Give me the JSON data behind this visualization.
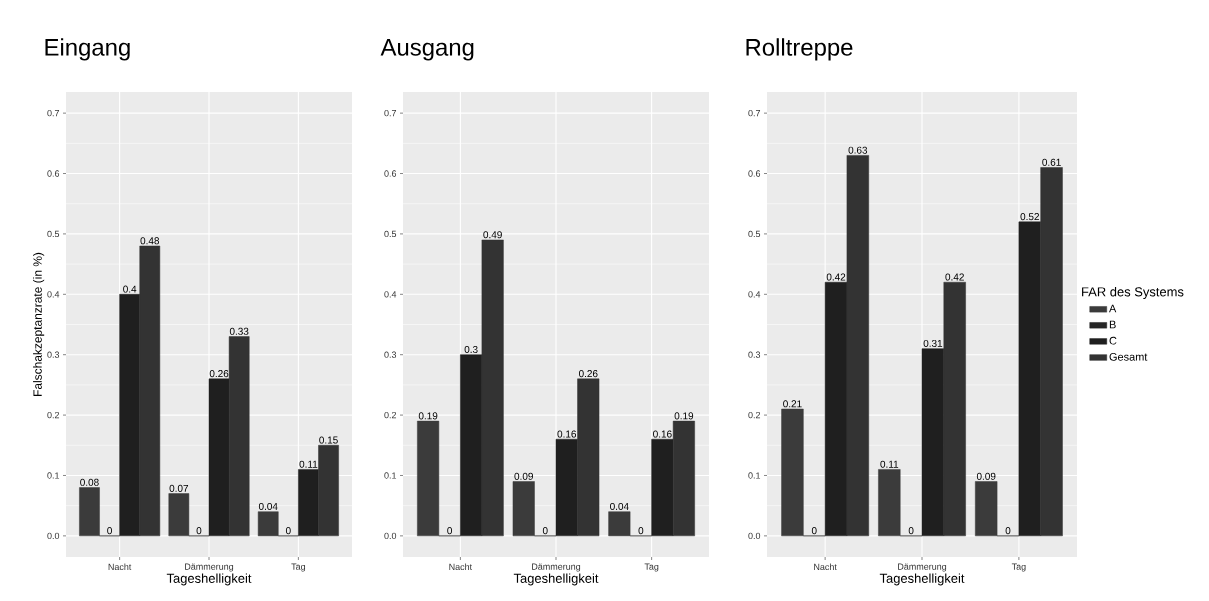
{
  "chart_data": [
    {
      "type": "bar",
      "title": "Eingang",
      "xlabel": "Tageshelligkeit",
      "ylabel": "Falschakzeptanzrate (in %)",
      "categories": [
        "Nacht",
        "Dämmerung",
        "Tag"
      ],
      "series": [
        {
          "color": "#3b3b3b",
          "values": [
            0.08,
            0.07,
            0.04
          ]
        },
        {
          "color": "#262626",
          "values": [
            0,
            0,
            0
          ]
        },
        {
          "color": "#1f1f1f",
          "values": [
            0.4,
            0.26,
            0.11
          ]
        },
        {
          "color": "#333333",
          "values": [
            0.48,
            0.33,
            0.15
          ]
        }
      ],
      "ylim": [
        -0.035,
        0.735
      ],
      "yticks": [
        {
          "value": 0,
          "label": "0.0"
        },
        {
          "value": 0.1,
          "label": "0.1"
        },
        {
          "value": 0.2,
          "label": "0.2"
        },
        {
          "value": 0.3,
          "label": "0.3"
        },
        {
          "value": 0.4,
          "label": "0.4"
        },
        {
          "value": 0.5,
          "label": "0.5"
        },
        {
          "value": 0.6,
          "label": "0.6"
        },
        {
          "value": 0.7,
          "label": "0.7"
        }
      ],
      "grid": true,
      "data_labels": true
    },
    {
      "type": "bar",
      "title": "Ausgang",
      "xlabel": "Tageshelligkeit",
      "categories": [
        "Nacht",
        "Dämmerung",
        "Tag"
      ],
      "series": [
        {
          "color": "#3b3b3b",
          "values": [
            0.19,
            0.09,
            0.04
          ]
        },
        {
          "color": "#262626",
          "values": [
            0,
            0,
            0
          ]
        },
        {
          "color": "#1f1f1f",
          "values": [
            0.3,
            0.16,
            0.16
          ]
        },
        {
          "color": "#333333",
          "values": [
            0.49,
            0.26,
            0.19
          ]
        }
      ],
      "ylim": [
        -0.035,
        0.735
      ],
      "yticks": [
        {
          "value": 0,
          "label": "0.0"
        },
        {
          "value": 0.1,
          "label": "0.1"
        },
        {
          "value": 0.2,
          "label": "0.2"
        },
        {
          "value": 0.3,
          "label": "0.3"
        },
        {
          "value": 0.4,
          "label": "0.4"
        },
        {
          "value": 0.5,
          "label": "0.5"
        },
        {
          "value": 0.6,
          "label": "0.6"
        },
        {
          "value": 0.7,
          "label": "0.7"
        }
      ],
      "grid": true,
      "data_labels": true
    },
    {
      "type": "bar",
      "title": "Rolltreppe",
      "xlabel": "Tageshelligkeit",
      "categories": [
        "Nacht",
        "Dämmerung",
        "Tag"
      ],
      "series": [
        {
          "name": "A",
          "color": "#3b3b3b",
          "values": [
            0.21,
            0.11,
            0.09
          ]
        },
        {
          "name": "B",
          "color": "#262626",
          "values": [
            0,
            0,
            0
          ]
        },
        {
          "name": "C",
          "color": "#1f1f1f",
          "values": [
            0.42,
            0.31,
            0.52
          ]
        },
        {
          "name": "Gesamt",
          "color": "#333333",
          "values": [
            0.63,
            0.42,
            0.61
          ]
        }
      ],
      "ylim": [
        -0.035,
        0.735
      ],
      "yticks": [
        {
          "value": 0,
          "label": "0.0"
        },
        {
          "value": 0.1,
          "label": "0.1"
        },
        {
          "value": 0.2,
          "label": "0.2"
        },
        {
          "value": 0.3,
          "label": "0.3"
        },
        {
          "value": 0.4,
          "label": "0.4"
        },
        {
          "value": 0.5,
          "label": "0.5"
        },
        {
          "value": 0.6,
          "label": "0.6"
        },
        {
          "value": 0.7,
          "label": "0.7"
        }
      ],
      "grid": true,
      "data_labels": true,
      "legend": "right",
      "legend_title": "FAR des Systems"
    }
  ]
}
